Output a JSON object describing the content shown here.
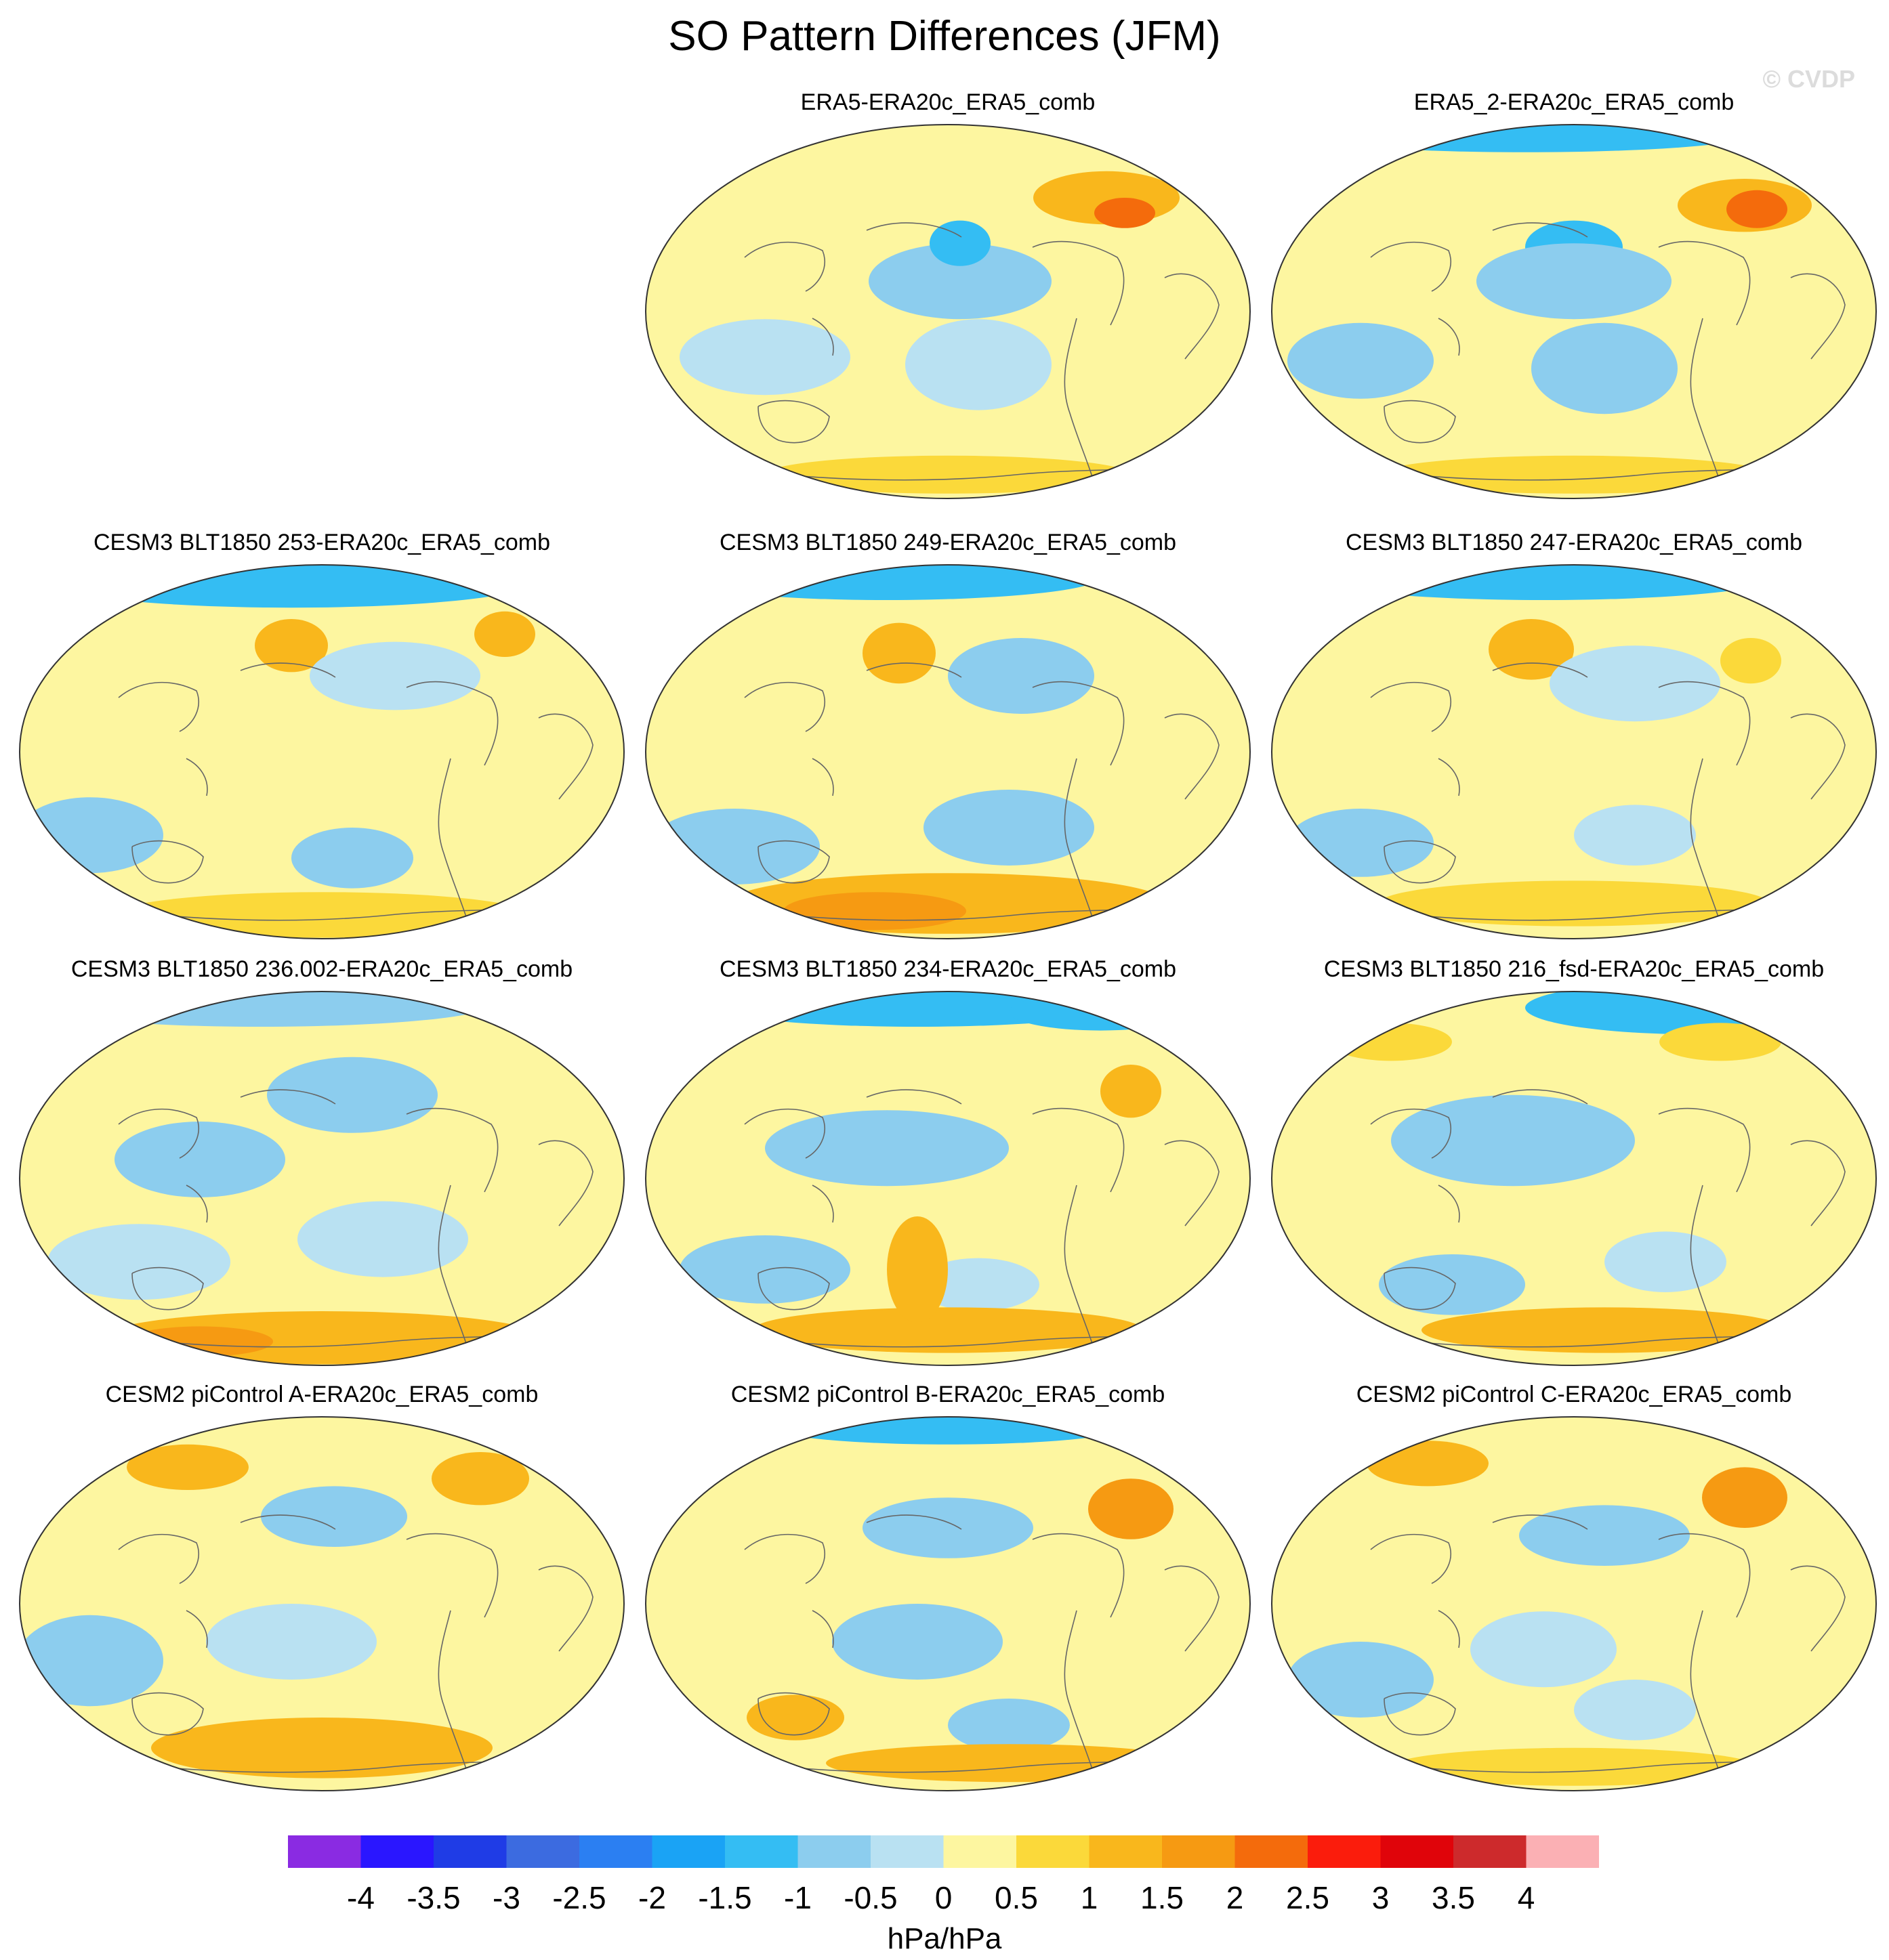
{
  "figure": {
    "title": "SO Pattern Differences (JFM)",
    "watermark": "© CVDP"
  },
  "panels": [
    {
      "id": "p1",
      "title": "ERA5-ERA20c_ERA5_comb",
      "blobs": [
        [
          -0.7,
          0.52,
          0.42,
          0.15,
          0.1
        ],
        [
          -1.5,
          0.52,
          0.32,
          0.05,
          0.06
        ],
        [
          1.0,
          0.76,
          0.2,
          0.12,
          0.07
        ],
        [
          2.0,
          0.79,
          0.24,
          0.05,
          0.04
        ],
        [
          -0.5,
          0.2,
          0.62,
          0.14,
          0.1
        ],
        [
          -0.5,
          0.55,
          0.64,
          0.12,
          0.12
        ],
        [
          0.8,
          0.5,
          0.93,
          0.3,
          0.05
        ]
      ]
    },
    {
      "id": "p2",
      "title": "ERA5_2-ERA20c_ERA5_comb",
      "blobs": [
        [
          -1.2,
          0.42,
          0.03,
          0.38,
          0.05
        ],
        [
          -1.5,
          0.5,
          0.33,
          0.08,
          0.07
        ],
        [
          -0.6,
          0.5,
          0.42,
          0.16,
          0.1
        ],
        [
          1.0,
          0.78,
          0.22,
          0.11,
          0.07
        ],
        [
          2.0,
          0.8,
          0.23,
          0.05,
          0.05
        ],
        [
          -0.6,
          0.15,
          0.63,
          0.12,
          0.1
        ],
        [
          -0.6,
          0.55,
          0.65,
          0.12,
          0.12
        ],
        [
          0.9,
          0.5,
          0.93,
          0.32,
          0.05
        ]
      ]
    },
    {
      "id": "p3",
      "title": "CESM3 BLT1850 253-ERA20c_ERA5_comb",
      "blobs": [
        [
          -1.2,
          0.45,
          0.05,
          0.4,
          0.07
        ],
        [
          1.2,
          0.45,
          0.22,
          0.06,
          0.07
        ],
        [
          1.0,
          0.8,
          0.19,
          0.05,
          0.06
        ],
        [
          -0.5,
          0.62,
          0.3,
          0.14,
          0.09
        ],
        [
          -0.6,
          0.12,
          0.72,
          0.12,
          0.1
        ],
        [
          -1.0,
          0.55,
          0.78,
          0.1,
          0.08
        ],
        [
          0.9,
          0.5,
          0.93,
          0.34,
          0.06
        ]
      ]
    },
    {
      "id": "p4",
      "title": "CESM3 BLT1850 249-ERA20c_ERA5_comb",
      "blobs": [
        [
          -1.2,
          0.4,
          0.04,
          0.35,
          0.06
        ],
        [
          1.2,
          0.42,
          0.24,
          0.06,
          0.08
        ],
        [
          -0.8,
          0.62,
          0.3,
          0.12,
          0.1
        ],
        [
          -0.6,
          0.15,
          0.75,
          0.14,
          0.1
        ],
        [
          -0.7,
          0.6,
          0.7,
          0.14,
          0.1
        ],
        [
          1.3,
          0.5,
          0.9,
          0.36,
          0.08
        ],
        [
          1.6,
          0.38,
          0.92,
          0.15,
          0.05
        ]
      ]
    },
    {
      "id": "p5",
      "title": "CESM3 BLT1850 247-ERA20c_ERA5_comb",
      "blobs": [
        [
          -1.2,
          0.45,
          0.04,
          0.38,
          0.06
        ],
        [
          1.3,
          0.43,
          0.23,
          0.07,
          0.08
        ],
        [
          0.8,
          0.79,
          0.26,
          0.05,
          0.06
        ],
        [
          -0.5,
          0.6,
          0.32,
          0.14,
          0.1
        ],
        [
          -0.6,
          0.15,
          0.74,
          0.12,
          0.09
        ],
        [
          -0.5,
          0.6,
          0.72,
          0.1,
          0.08
        ],
        [
          0.9,
          0.5,
          0.9,
          0.32,
          0.06
        ]
      ]
    },
    {
      "id": "p6",
      "title": "CESM3 BLT1850 236.002-ERA20c_ERA5_comb",
      "blobs": [
        [
          -1.0,
          0.4,
          0.04,
          0.38,
          0.06
        ],
        [
          -0.6,
          0.55,
          0.28,
          0.14,
          0.1
        ],
        [
          -0.6,
          0.3,
          0.45,
          0.14,
          0.1
        ],
        [
          -0.5,
          0.2,
          0.72,
          0.15,
          0.1
        ],
        [
          -0.5,
          0.6,
          0.66,
          0.14,
          0.1
        ],
        [
          1.4,
          0.5,
          0.92,
          0.36,
          0.07
        ],
        [
          1.8,
          0.3,
          0.93,
          0.12,
          0.04
        ]
      ]
    },
    {
      "id": "p7",
      "title": "CESM3 BLT1850 234-ERA20c_ERA5_comb",
      "blobs": [
        [
          -1.4,
          0.45,
          0.04,
          0.35,
          0.06
        ],
        [
          -1.2,
          0.75,
          0.06,
          0.15,
          0.05
        ],
        [
          1.0,
          0.8,
          0.27,
          0.05,
          0.07
        ],
        [
          -0.6,
          0.4,
          0.42,
          0.2,
          0.1
        ],
        [
          -0.6,
          0.2,
          0.74,
          0.14,
          0.09
        ],
        [
          -0.5,
          0.55,
          0.78,
          0.1,
          0.07
        ],
        [
          1.0,
          0.5,
          0.9,
          0.32,
          0.06
        ],
        [
          1.1,
          0.45,
          0.74,
          0.05,
          0.14
        ]
      ]
    },
    {
      "id": "p8",
      "title": "CESM3 BLT1850 216_fsd-ERA20c_ERA5_comb",
      "blobs": [
        [
          -1.4,
          0.7,
          0.05,
          0.28,
          0.07
        ],
        [
          0.9,
          0.2,
          0.14,
          0.1,
          0.05
        ],
        [
          0.9,
          0.74,
          0.14,
          0.1,
          0.05
        ],
        [
          -0.6,
          0.4,
          0.4,
          0.2,
          0.12
        ],
        [
          -0.6,
          0.3,
          0.78,
          0.12,
          0.08
        ],
        [
          -0.5,
          0.65,
          0.72,
          0.1,
          0.08
        ],
        [
          1.0,
          0.55,
          0.9,
          0.3,
          0.06
        ]
      ]
    },
    {
      "id": "p9",
      "title": "CESM2 piControl A-ERA20c_ERA5_comb",
      "blobs": [
        [
          1.2,
          0.28,
          0.14,
          0.1,
          0.06
        ],
        [
          1.2,
          0.76,
          0.17,
          0.08,
          0.07
        ],
        [
          -0.6,
          0.52,
          0.27,
          0.12,
          0.08
        ],
        [
          -0.5,
          0.45,
          0.6,
          0.14,
          0.1
        ],
        [
          -0.6,
          0.12,
          0.65,
          0.12,
          0.12
        ],
        [
          1.0,
          0.5,
          0.88,
          0.28,
          0.08
        ]
      ]
    },
    {
      "id": "p10",
      "title": "CESM2 piControl B-ERA20c_ERA5_comb",
      "blobs": [
        [
          -1.4,
          0.5,
          0.03,
          0.3,
          0.05
        ],
        [
          1.8,
          0.8,
          0.25,
          0.07,
          0.08
        ],
        [
          -0.6,
          0.5,
          0.3,
          0.14,
          0.08
        ],
        [
          -0.6,
          0.45,
          0.6,
          0.14,
          0.1
        ],
        [
          -1.0,
          0.6,
          0.82,
          0.1,
          0.07
        ],
        [
          1.0,
          0.25,
          0.8,
          0.08,
          0.06
        ],
        [
          1.0,
          0.6,
          0.92,
          0.3,
          0.05
        ]
      ]
    },
    {
      "id": "p11",
      "title": "CESM2 piControl C-ERA20c_ERA5_comb",
      "blobs": [
        [
          1.2,
          0.26,
          0.13,
          0.1,
          0.06
        ],
        [
          1.6,
          0.78,
          0.22,
          0.07,
          0.08
        ],
        [
          -0.6,
          0.55,
          0.32,
          0.14,
          0.08
        ],
        [
          -0.5,
          0.45,
          0.62,
          0.12,
          0.1
        ],
        [
          -0.6,
          0.15,
          0.7,
          0.12,
          0.1
        ],
        [
          -0.5,
          0.6,
          0.78,
          0.1,
          0.08
        ],
        [
          0.8,
          0.5,
          0.93,
          0.3,
          0.05
        ]
      ]
    }
  ],
  "colorbar": {
    "unit": "hPa/hPa",
    "ticks": [
      "-4",
      "-3.5",
      "-3",
      "-2.5",
      "-2",
      "-1.5",
      "-1",
      "-0.5",
      "0",
      "0.5",
      "1",
      "1.5",
      "2",
      "2.5",
      "3",
      "3.5",
      "4"
    ],
    "colors": [
      "#8a2be2",
      "#2a16ff",
      "#1f3ce6",
      "#3c6be0",
      "#2b7ff2",
      "#1aa3f5",
      "#34bdf3",
      "#8ccdee",
      "#b9e1f2",
      "#fdf6a0",
      "#fbd93a",
      "#f9b71c",
      "#f69a12",
      "#f46b0c",
      "#fb1c0c",
      "#e0040a",
      "#cd2a2c",
      "#fbb0b4"
    ]
  }
}
